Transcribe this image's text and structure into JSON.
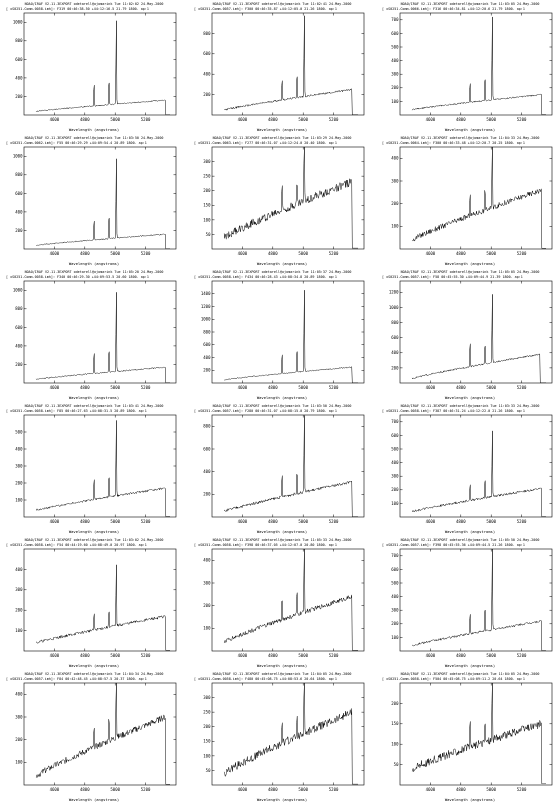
{
  "chart_data": [
    {
      "type": "line",
      "title": "NOAO/IRAF V2.11.3EXPORT odetarell@ojomarink Tue 11:02:02 24-May-2000",
      "subtitle": "[ xS0251-Comm.0058.imh]: F319  00:46:38.50  +44:12:16.5  21.79 1800. ap:1",
      "xlabel": "Wavelength (angstroms)",
      "ylabel": "",
      "xlim": [
        4400,
        5400
      ],
      "ylim": [
        0,
        1100
      ],
      "x_ticks": [
        4600,
        4800,
        5000,
        5200
      ],
      "y_ticks": [
        200,
        400,
        600,
        800,
        1000
      ],
      "peak_height": 1050,
      "spike_height": 310,
      "base_start": 40,
      "base_end": 160,
      "end_drop": 5330,
      "noise": 6
    },
    {
      "type": "line",
      "title": "NOAO/IRAF V2.11.3EXPORT odetarell@ojomarink Tue 11:02:41 24-May-2000",
      "subtitle": "[ xS0251-Comm.0057.imh]: F300  00:46:35.87  +44:12:05.0  21.26 1800. ap:1",
      "xlabel": "Wavelength (angstroms)",
      "ylabel": "",
      "xlim": [
        4400,
        5400
      ],
      "ylim": [
        0,
        1000
      ],
      "x_ticks": [
        4600,
        4800,
        5000,
        5200
      ],
      "y_ticks": [
        200,
        400,
        600,
        800
      ],
      "peak_height": 930,
      "spike_height": 270,
      "base_start": 50,
      "base_end": 250,
      "end_drop": 5320,
      "noise": 9
    },
    {
      "type": "line",
      "title": "NOAO/IRAF V2.11.3EXPORT odetarell@ojomarink Tue 11:03:05 24-May-2000",
      "subtitle": "[ xS0251-Comm.0066.imh]: F316  00:46:34.81  +44:12:20.6  21.79 1800. ap:1",
      "xlabel": "Wavelength (angstroms)",
      "ylabel": "",
      "xlim": [
        4400,
        5400
      ],
      "ylim": [
        0,
        750
      ],
      "x_ticks": [
        4600,
        4800,
        5000,
        5200
      ],
      "y_ticks": [
        100,
        200,
        300,
        400,
        500,
        600,
        700
      ],
      "peak_height": 720,
      "spike_height": 190,
      "base_start": 40,
      "base_end": 150,
      "end_drop": 5330,
      "noise": 5
    },
    {
      "type": "line",
      "title": "NOAO/IRAF V2.11.3EXPORT odetarell@ojomarink Tue 11:03:50 24-May-2000",
      "subtitle": "[ xS0251-Comm.0062.imh]: F55  00:46:29.29  +44:09:54.4  20.89 1800. ap:1",
      "xlabel": "Wavelength (angstroms)",
      "ylabel": "",
      "xlim": [
        4400,
        5400
      ],
      "ylim": [
        0,
        1100
      ],
      "x_ticks": [
        4600,
        4800,
        5000,
        5200
      ],
      "y_ticks": [
        200,
        400,
        600,
        800,
        1000
      ],
      "peak_height": 1000,
      "spike_height": 290,
      "base_start": 40,
      "base_end": 160,
      "end_drop": 5330,
      "noise": 6
    },
    {
      "type": "line",
      "title": "NOAO/IRAF V2.11.3EXPORT odetarell@ojomarink Tue 11:03:29 24-May-2000",
      "subtitle": "[ xS0251-Comm.0063.imh]: F277  00:46:31.07  +44:12:24.0  20.40 1800. ap:1",
      "xlabel": "Wavelength (angstroms)",
      "ylabel": "",
      "xlim": [
        4400,
        5400
      ],
      "ylim": [
        0,
        350
      ],
      "x_ticks": [
        4600,
        4800,
        5000,
        5200
      ],
      "y_ticks": [
        50,
        100,
        150,
        200,
        250,
        300
      ],
      "peak_height": 300,
      "spike_height": 110,
      "base_start": 40,
      "base_end": 230,
      "end_drop": 5320,
      "noise": 14
    },
    {
      "type": "line",
      "title": "NOAO/IRAF V2.11.3EXPORT odetarell@ojomarink Tue 11:04:33 24-May-2000",
      "subtitle": "[ xS0251-Comm.0064.imh]: F300  00:46:33.48  +44:12:20.7  20.25 1800. ap:1",
      "xlabel": "Wavelength (angstroms)",
      "ylabel": "",
      "xlim": [
        4400,
        5400
      ],
      "ylim": [
        0,
        450
      ],
      "x_ticks": [
        4600,
        4800,
        5000,
        5200
      ],
      "y_ticks": [
        100,
        200,
        300,
        400
      ],
      "peak_height": 390,
      "spike_height": 140,
      "base_start": 40,
      "base_end": 260,
      "end_drop": 5330,
      "noise": 12
    },
    {
      "type": "line",
      "title": "NOAO/IRAF V2.11.3EXPORT odetarell@ojomarink Tue 11:05:20 24-May-2000",
      "subtitle": "[ xS0251-Comm.0058.imh]: F340  00:46:29.30  +44:09:53.5  20.60 1800. ap:1",
      "xlabel": "Wavelength (angstroms)",
      "ylabel": "",
      "xlim": [
        4400,
        5400
      ],
      "ylim": [
        0,
        1100
      ],
      "x_ticks": [
        4600,
        4800,
        5000,
        5200
      ],
      "y_ticks": [
        200,
        400,
        600,
        800,
        1000
      ],
      "peak_height": 1000,
      "spike_height": 300,
      "base_start": 40,
      "base_end": 170,
      "end_drop": 5330,
      "noise": 6
    },
    {
      "type": "line",
      "title": "NOAO/IRAF V2.11.3EXPORT odetarell@ojomarink Tue 11:05:37 24-May-2000",
      "subtitle": "[ xS0251-Comm.0058.imh]: F434  00:46:28.43  +44:08:34.8  20.89 1800. ap:1",
      "xlabel": "Wavelength (angstroms)",
      "ylabel": "",
      "xlim": [
        4400,
        5400
      ],
      "ylim": [
        0,
        1600
      ],
      "x_ticks": [
        4600,
        4800,
        5000,
        5200
      ],
      "y_ticks": [
        200,
        400,
        600,
        800,
        1000,
        1200,
        1400
      ],
      "peak_height": 1500,
      "spike_height": 420,
      "base_start": 50,
      "base_end": 250,
      "end_drop": 5320,
      "noise": 8
    },
    {
      "type": "line",
      "title": "NOAO/IRAF V2.11.3EXPORT odetarell@ojomarink Tue 11:05:05 24-May-2000",
      "subtitle": "[ xS0251-Comm.0057.imh]: F58  00:45:55.30  +44:09:44.9  21.39 1800. ap:1",
      "xlabel": "Wavelength (angstroms)",
      "ylabel": "",
      "xlim": [
        4400,
        5400
      ],
      "ylim": [
        0,
        1350
      ],
      "x_ticks": [
        4600,
        4800,
        5000,
        5200
      ],
      "y_ticks": [
        200,
        400,
        600,
        800,
        1000,
        1200
      ],
      "peak_height": 1050,
      "spike_height": 420,
      "base_start": 60,
      "base_end": 380,
      "end_drop": 5320,
      "noise": 10
    },
    {
      "type": "line",
      "title": "NOAO/IRAF V2.11.3EXPORT odetarell@ojomarink Tue 11:03:41 24-May-2000",
      "subtitle": "[ xS0251-Comm.0058.imh]: F85  00:46:27.63  +44:08:31.5  20.89 1800. ap:1",
      "xlabel": "Wavelength (angstroms)",
      "ylabel": "",
      "xlim": [
        4400,
        5400
      ],
      "ylim": [
        0,
        600
      ],
      "x_ticks": [
        4600,
        4800,
        5000,
        5200
      ],
      "y_ticks": [
        100,
        200,
        300,
        400,
        500
      ],
      "peak_height": 520,
      "spike_height": 170,
      "base_start": 40,
      "base_end": 170,
      "end_drop": 5330,
      "noise": 6
    },
    {
      "type": "line",
      "title": "NOAO/IRAF V2.11.3EXPORT odetarell@ojomarink Tue 11:03:50 24-May-2000",
      "subtitle": "[ xS0251-Comm.0057.imh]: F280  00:46:31.07  +44:08:15.0  20.79 1800. ap:1",
      "xlabel": "Wavelength (angstroms)",
      "ylabel": "",
      "xlim": [
        4400,
        5400
      ],
      "ylim": [
        0,
        900
      ],
      "x_ticks": [
        4600,
        4800,
        5000,
        5200
      ],
      "y_ticks": [
        200,
        400,
        600,
        800
      ],
      "peak_height": 800,
      "spike_height": 260,
      "base_start": 50,
      "base_end": 310,
      "end_drop": 5320,
      "noise": 12
    },
    {
      "type": "line",
      "title": "NOAO/IRAF V2.11.3EXPORT odetarell@ojomarink Tue 11:03:33 24-May-2000",
      "subtitle": "[ xS0251-Comm.0058.imh]: F387  00:46:31.24  +44:12:22.0  21.26 1800. ap:1",
      "xlabel": "Wavelength (angstroms)",
      "ylabel": "",
      "xlim": [
        4400,
        5400
      ],
      "ylim": [
        0,
        750
      ],
      "x_ticks": [
        4600,
        4800,
        5000,
        5200
      ],
      "y_ticks": [
        100,
        200,
        300,
        400,
        500,
        600,
        700
      ],
      "peak_height": 560,
      "spike_height": 170,
      "base_start": 40,
      "base_end": 210,
      "end_drop": 5330,
      "noise": 8
    },
    {
      "type": "line",
      "title": "NOAO/IRAF V2.11.3EXPORT odetarell@ojomarink Tue 11:03:02 24-May-2000",
      "subtitle": "[ xS0251-Comm.0058.imh]: F54  00:44:19.60  +44:08:49.0  20.97 1800. ap:1",
      "xlabel": "Wavelength (angstroms)",
      "ylabel": "",
      "xlim": [
        4400,
        5400
      ],
      "ylim": [
        0,
        500
      ],
      "x_ticks": [
        4600,
        4800,
        5000,
        5200
      ],
      "y_ticks": [
        100,
        200,
        300,
        400
      ],
      "peak_height": 350,
      "spike_height": 110,
      "base_start": 40,
      "base_end": 170,
      "end_drop": 5330,
      "noise": 7
    },
    {
      "type": "line",
      "title": "NOAO/IRAF V2.11.3EXPORT odetarell@ojomarink Tue 11:05:33 24-May-2000",
      "subtitle": "[ xS0251-Comm.0058.imh]: F398  00:46:37.05  +44:12:07.0  20.80 1800. ap:1",
      "xlabel": "Wavelength (angstroms)",
      "ylabel": "",
      "xlim": [
        4400,
        5400
      ],
      "ylim": [
        0,
        450
      ],
      "x_ticks": [
        4600,
        4800,
        5000,
        5200
      ],
      "y_ticks": [
        100,
        200,
        300,
        400
      ],
      "peak_height": 400,
      "spike_height": 130,
      "base_start": 40,
      "base_end": 240,
      "end_drop": 5320,
      "noise": 10
    },
    {
      "type": "line",
      "title": "NOAO/IRAF V2.11.3EXPORT odetarell@ojomarink Tue 11:05:50 24-May-2000",
      "subtitle": "[ xS0251-Comm.0057.imh]: F398  00:45:55.36  +44:09:44.5  21.26 1800. ap:1",
      "xlabel": "Wavelength (angstroms)",
      "ylabel": "",
      "xlim": [
        4400,
        5400
      ],
      "ylim": [
        0,
        750
      ],
      "x_ticks": [
        4600,
        4800,
        5000,
        5200
      ],
      "y_ticks": [
        100,
        200,
        300,
        400,
        500,
        600,
        700
      ],
      "peak_height": 700,
      "spike_height": 200,
      "base_start": 40,
      "base_end": 220,
      "end_drop": 5330,
      "noise": 8
    },
    {
      "type": "line",
      "title": "NOAO/IRAF V2.11.3EXPORT odetarell@ojomarink Tue 11:04:34 24-May-2000",
      "subtitle": "[ xS0251-Comm.0057.imh]: F84  00:42:48.45  +44:08:57.5  20.37 1800. ap:1",
      "xlabel": "Wavelength (angstroms)",
      "ylabel": "",
      "xlim": [
        4400,
        5400
      ],
      "ylim": [
        0,
        450
      ],
      "x_ticks": [
        4600,
        4800,
        5000,
        5200
      ],
      "y_ticks": [
        100,
        200,
        300,
        400
      ],
      "peak_height": 410,
      "spike_height": 100,
      "base_start": 40,
      "base_end": 300,
      "end_drop": 5330,
      "noise": 14
    },
    {
      "type": "line",
      "title": "NOAO/IRAF V2.11.3EXPORT odetarell@ojomarink Tue 11:04:05 24-May-2000",
      "subtitle": "[ xS0251-Comm.0058.imh]: F480  00:45:08.75  +44:08:53.6  20.64 1800. ap:1",
      "xlabel": "Wavelength (angstroms)",
      "ylabel": "",
      "xlim": [
        4400,
        5400
      ],
      "ylim": [
        0,
        350
      ],
      "x_ticks": [
        4600,
        4800,
        5000,
        5200
      ],
      "y_ticks": [
        50,
        100,
        150,
        200,
        250,
        300
      ],
      "peak_height": 280,
      "spike_height": 100,
      "base_start": 40,
      "base_end": 250,
      "end_drop": 5320,
      "noise": 14
    },
    {
      "type": "line",
      "title": "NOAO/IRAF V2.11.3EXPORT odetarell@ojomarink Tue 11:04:05 24-May-2000",
      "subtitle": "[ xS0251-Comm.0058.imh]: F504  00:45:08.75  +44:09:11.2  20.64 1800. ap:1",
      "xlabel": "Wavelength (angstroms)",
      "ylabel": "",
      "xlim": [
        4400,
        5400
      ],
      "ylim": [
        0,
        250
      ],
      "x_ticks": [
        4600,
        4800,
        5000,
        5200
      ],
      "y_ticks": [
        50,
        100,
        150,
        200
      ],
      "peak_height": 210,
      "spike_height": 75,
      "base_start": 40,
      "base_end": 150,
      "end_drop": 5330,
      "noise": 10
    }
  ]
}
